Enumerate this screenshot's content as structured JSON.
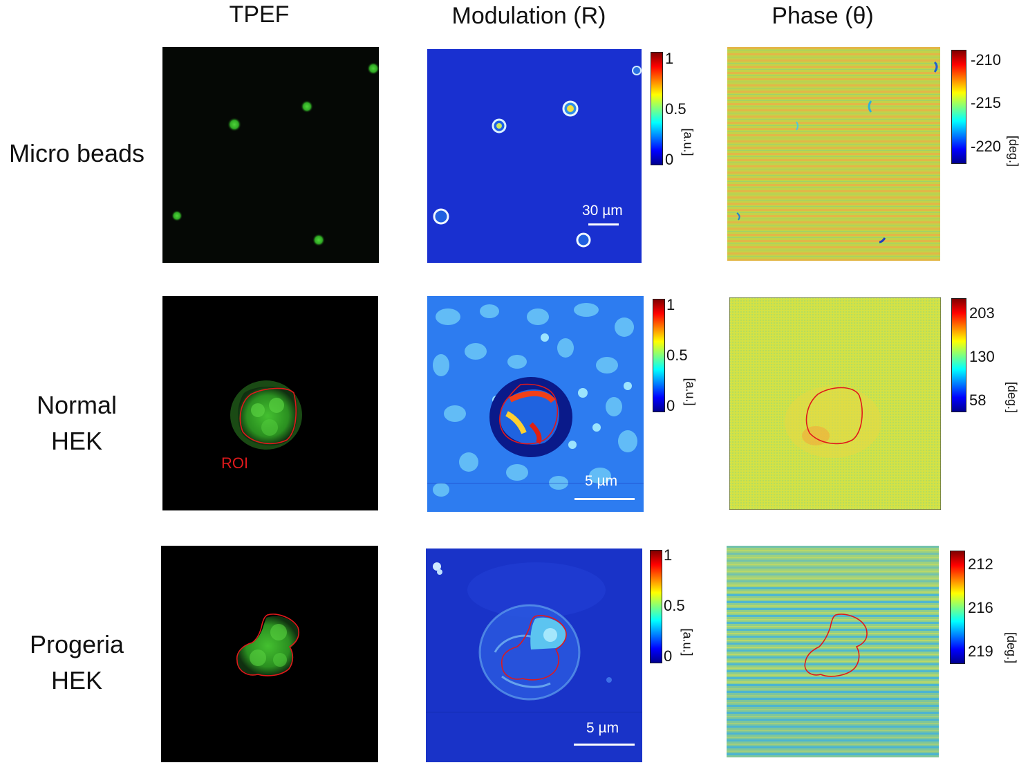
{
  "columns": [
    "TPEF",
    "Modulation (R)",
    "Phase (θ)"
  ],
  "rows": [
    {
      "label_line1": "Micro beads",
      "label_line2": "",
      "modulation_colorbar": {
        "ticks": [
          "1",
          "0.5",
          "0"
        ],
        "unit": "[a.u.]"
      },
      "phase_colorbar": {
        "ticks": [
          "-210",
          "-215",
          "-220"
        ],
        "unit": "[deg.]"
      },
      "scalebar": "30 µm"
    },
    {
      "label_line1": "Normal",
      "label_line2": "HEK",
      "roi_label": "ROI",
      "modulation_colorbar": {
        "ticks": [
          "1",
          "0.5",
          "0"
        ],
        "unit": "[a.u.]"
      },
      "phase_colorbar": {
        "ticks": [
          "203",
          "130",
          "58"
        ],
        "unit": "[deg.]"
      },
      "scalebar": "5 µm"
    },
    {
      "label_line1": "Progeria",
      "label_line2": "HEK",
      "modulation_colorbar": {
        "ticks": [
          "1",
          "0.5",
          "0"
        ],
        "unit": "[a.u.]"
      },
      "phase_colorbar": {
        "ticks": [
          "212",
          "216",
          "219"
        ],
        "unit": "[deg.]"
      },
      "scalebar": "5 µm"
    }
  ],
  "colors": {
    "tpef_signal": "#3fbf2f",
    "roi_outline": "#e0191b",
    "modulation_background": "#1a2fd8",
    "phase_background": "#c9d93f"
  }
}
